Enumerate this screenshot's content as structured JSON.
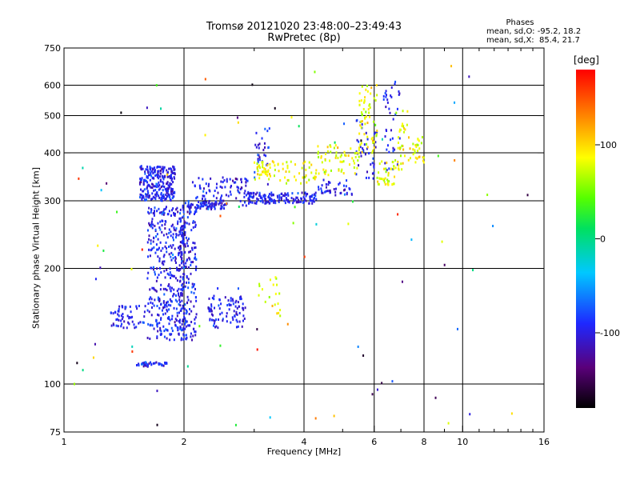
{
  "header": {
    "title_line1": "Tromsø 20121020 23:48:00–23:49:43",
    "title_line2": "RwPretec (8p)"
  },
  "stats": {
    "heading": "Phases",
    "line_o": "mean, sd,O: -95.2, 18.2",
    "line_x": "mean, sd,X:  85.4, 21.7"
  },
  "colorbar": {
    "title": "[deg]",
    "ticks": [
      "100",
      "0",
      "-100"
    ],
    "tick_values": [
      100,
      0,
      -100
    ],
    "range": [
      -180,
      180
    ]
  },
  "chart_data": {
    "type": "scatter",
    "title": "Tromsø 20121020 23:48:00–23:49:43",
    "subtitle": "RwPretec (8p)",
    "xlabel": "Frequency [MHz]",
    "ylabel": "Stationary phase Virtual Height [km]",
    "x_scale": "log",
    "y_scale": "log",
    "xlim": [
      1,
      16
    ],
    "ylim": [
      75,
      750
    ],
    "x_ticks": [
      1,
      2,
      4,
      6,
      8,
      10,
      16
    ],
    "x_tick_labels": [
      "1",
      "2",
      "4",
      "6",
      "8",
      "10",
      "16"
    ],
    "y_ticks": [
      75,
      100,
      200,
      300,
      400,
      500,
      600,
      750
    ],
    "y_tick_labels": [
      "75",
      "100",
      "200",
      "300",
      "400",
      "500",
      "600",
      "750"
    ],
    "grid_x": [
      2,
      4,
      6,
      8,
      10
    ],
    "grid_y": [
      100,
      200,
      300,
      400,
      500,
      600
    ],
    "colorscale": "rainbow (black→purple→blue→cyan→green→yellow→red)",
    "series": [
      {
        "name": "O",
        "phase_mean": -95.2,
        "phase_sd": 18.2,
        "clusters": [
          {
            "f": [
              1.55,
              1.9
            ],
            "h": [
              300,
              370
            ],
            "n": 260
          },
          {
            "f": [
              1.62,
              2.0
            ],
            "h": [
              130,
              290
            ],
            "n": 380
          },
          {
            "f": [
              1.95,
              2.15
            ],
            "h": [
              130,
              300
            ],
            "n": 180
          },
          {
            "f": [
              2.05,
              2.55
            ],
            "h": [
              285,
              300
            ],
            "n": 70
          },
          {
            "f": [
              2.1,
              2.9
            ],
            "h": [
              290,
              345
            ],
            "n": 90
          },
          {
            "f": [
              2.3,
              2.85
            ],
            "h": [
              140,
              170
            ],
            "n": 90
          },
          {
            "f": [
              1.3,
              1.6
            ],
            "h": [
              140,
              160
            ],
            "n": 60
          },
          {
            "f": [
              1.52,
              1.82
            ],
            "h": [
              111,
              114
            ],
            "n": 40
          },
          {
            "f": [
              2.9,
              4.3
            ],
            "h": [
              295,
              315
            ],
            "n": 150
          },
          {
            "f": [
              3.0,
              3.3
            ],
            "h": [
              330,
              470
            ],
            "n": 30
          },
          {
            "f": [
              4.3,
              5.3
            ],
            "h": [
              310,
              340
            ],
            "n": 40
          },
          {
            "f": [
              5.4,
              6.1
            ],
            "h": [
              340,
              490
            ],
            "n": 40
          },
          {
            "f": [
              6.3,
              7.0
            ],
            "h": [
              360,
              630
            ],
            "n": 40
          }
        ]
      },
      {
        "name": "X",
        "phase_mean": 85.4,
        "phase_sd": 21.7,
        "clusters": [
          {
            "f": [
              3.0,
              3.4
            ],
            "h": [
              340,
              380
            ],
            "n": 40
          },
          {
            "f": [
              3.4,
              4.3
            ],
            "h": [
              330,
              380
            ],
            "n": 40
          },
          {
            "f": [
              4.3,
              5.5
            ],
            "h": [
              350,
              420
            ],
            "n": 60
          },
          {
            "f": [
              5.5,
              6.1
            ],
            "h": [
              400,
              600
            ],
            "n": 60
          },
          {
            "f": [
              6.1,
              6.8
            ],
            "h": [
              330,
              380
            ],
            "n": 40
          },
          {
            "f": [
              6.8,
              7.4
            ],
            "h": [
              360,
              520
            ],
            "n": 35
          },
          {
            "f": [
              7.5,
              8.0
            ],
            "h": [
              370,
              440
            ],
            "n": 25
          },
          {
            "f": [
              3.0,
              3.5
            ],
            "h": [
              150,
              190
            ],
            "n": 20
          }
        ]
      }
    ]
  }
}
